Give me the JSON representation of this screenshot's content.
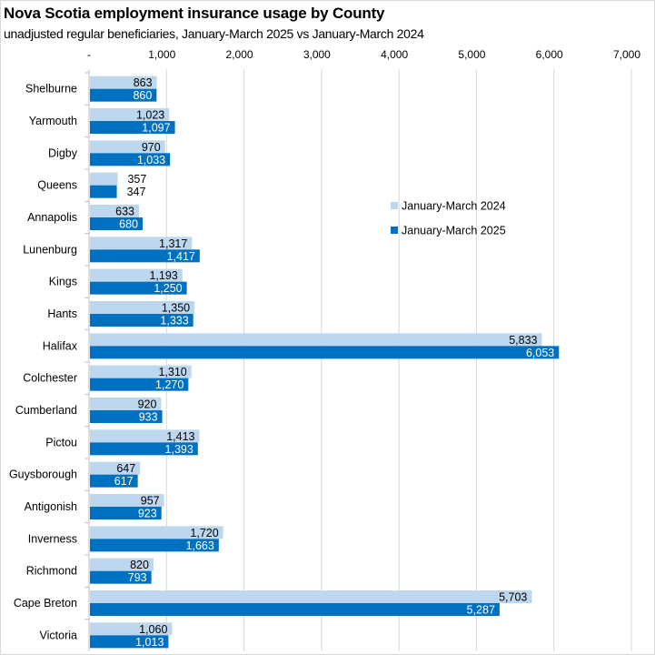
{
  "chart_data": {
    "type": "bar",
    "orientation": "horizontal",
    "title": "Nova Scotia employment insurance usage by County",
    "subtitle": "unadjusted regular beneficiaries, January-March 2025 vs January-March 2024",
    "xlabel": "",
    "ylabel": "",
    "xlim": [
      0,
      7000
    ],
    "x_ticks": [
      0,
      1000,
      2000,
      3000,
      4000,
      5000,
      6000,
      7000
    ],
    "x_tick_labels": [
      "-",
      "1,000",
      "2,000",
      "3,000",
      "4,000",
      "5,000",
      "6,000",
      "7,000"
    ],
    "x_axis_position": "top",
    "grid": true,
    "legend_position": "right-center",
    "categories": [
      "Shelburne",
      "Yarmouth",
      "Digby",
      "Queens",
      "Annapolis",
      "Lunenburg",
      "Kings",
      "Hants",
      "Halifax",
      "Colchester",
      "Cumberland",
      "Pictou",
      "Guysborough",
      "Antigonish",
      "Inverness",
      "Richmond",
      "Cape Breton",
      "Victoria"
    ],
    "series": [
      {
        "name": "January-March 2024",
        "color": "#bdd7ee",
        "label_color": "#000000",
        "values": [
          863,
          1023,
          970,
          357,
          633,
          1317,
          1193,
          1350,
          5833,
          1310,
          920,
          1413,
          647,
          957,
          1720,
          820,
          5703,
          1060
        ],
        "labels": [
          "863",
          "1,023",
          "970",
          "357",
          "633",
          "1,317",
          "1,193",
          "1,350",
          "5,833",
          "1,310",
          "920",
          "1,413",
          "647",
          "957",
          "1,720",
          "820",
          "5,703",
          "1,060"
        ]
      },
      {
        "name": "January-March 2025",
        "color": "#0070c0",
        "label_color": "#ffffff",
        "values": [
          860,
          1097,
          1033,
          347,
          680,
          1417,
          1250,
          1333,
          6053,
          1270,
          933,
          1393,
          617,
          923,
          1663,
          793,
          5287,
          1013
        ],
        "labels": [
          "860",
          "1,097",
          "1,033",
          "347",
          "680",
          "1,417",
          "1,250",
          "1,333",
          "6,053",
          "1,270",
          "933",
          "1,393",
          "617",
          "923",
          "1,663",
          "793",
          "5,287",
          "1,013"
        ]
      }
    ]
  },
  "colors": {
    "gridline": "#d9d9d9",
    "border": "#d9d9d9"
  }
}
